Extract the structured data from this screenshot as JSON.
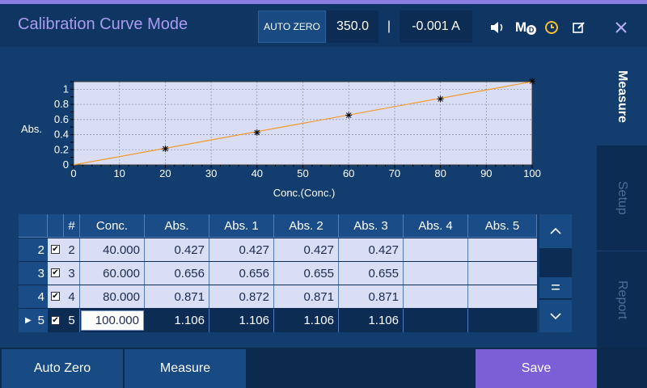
{
  "header": {
    "title": "Calibration Curve Mode",
    "auto_zero_label": "AUTO ZERO",
    "wavelength": "350.0",
    "separator": "|",
    "reading": "-0.001 A",
    "mb_label": "M",
    "mb_sub": "D"
  },
  "side_tabs": [
    {
      "label": "Measure",
      "active": true
    },
    {
      "label": "Setup",
      "active": false
    },
    {
      "label": "Report",
      "active": false
    }
  ],
  "chart_data": {
    "type": "scatter",
    "xlabel": "Conc.(Conc.)",
    "ylabel": "Abs.",
    "xlim": [
      0,
      100
    ],
    "ylim": [
      0,
      1.1
    ],
    "xticks": [
      0,
      10,
      20,
      30,
      40,
      50,
      60,
      70,
      80,
      90,
      100
    ],
    "yticks": [
      0,
      0.2,
      0.4,
      0.6,
      0.8,
      1
    ],
    "yticks_minor": [
      0.1,
      0.3,
      0.5,
      0.7,
      0.9,
      1.1
    ],
    "points": {
      "x": [
        20,
        40,
        60,
        80,
        100
      ],
      "y": [
        0.214,
        0.427,
        0.656,
        0.871,
        1.106
      ]
    },
    "fit_line": {
      "x": [
        0,
        100
      ],
      "y": [
        0.0,
        1.1
      ]
    },
    "grid": true,
    "colors": {
      "plot_bg": "#d9def5",
      "line": "#f39a2b",
      "marker": "#000000"
    }
  },
  "table": {
    "headers": [
      "#",
      "Conc.",
      "Abs.",
      "Abs. 1",
      "Abs. 2",
      "Abs. 3",
      "Abs. 4",
      "Abs. 5"
    ],
    "rows": [
      {
        "index": "2",
        "checked": true,
        "num": "2",
        "conc": "40.000",
        "abs": "0.427",
        "abs1": "0.427",
        "abs2": "0.427",
        "abs3": "0.427",
        "abs4": "",
        "abs5": "",
        "active": false
      },
      {
        "index": "3",
        "checked": true,
        "num": "3",
        "conc": "60.000",
        "abs": "0.656",
        "abs1": "0.656",
        "abs2": "0.655",
        "abs3": "0.655",
        "abs4": "",
        "abs5": "",
        "active": false
      },
      {
        "index": "4",
        "checked": true,
        "num": "4",
        "conc": "80.000",
        "abs": "0.871",
        "abs1": "0.872",
        "abs2": "0.871",
        "abs3": "0.871",
        "abs4": "",
        "abs5": "",
        "active": false
      },
      {
        "index": "5",
        "checked": true,
        "num": "5",
        "conc": "100.000",
        "abs": "1.106",
        "abs1": "1.106",
        "abs2": "1.106",
        "abs3": "1.106",
        "abs4": "",
        "abs5": "",
        "active": true
      }
    ],
    "scroll": {
      "up": "▲",
      "mid": "=",
      "down": "▼"
    }
  },
  "footer": {
    "auto_zero": "Auto Zero",
    "measure": "Measure",
    "save": "Save"
  },
  "colors": {
    "accent": "#7b5fd6",
    "title": "#a99cf0",
    "clock": "#f2c230"
  }
}
